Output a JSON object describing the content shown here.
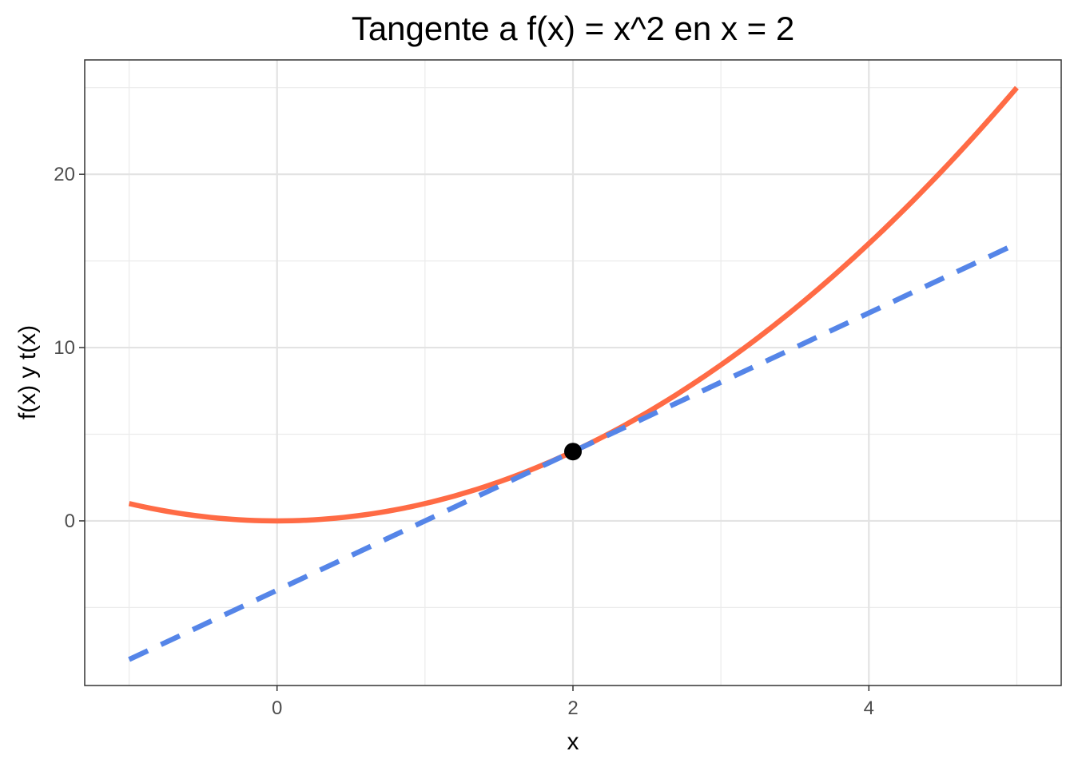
{
  "chart_data": {
    "type": "line",
    "title": "Tangente a f(x) = x^2 en x = 2",
    "xlabel": "x",
    "ylabel": "f(x) y t(x)",
    "xlim": [
      -1.3,
      5.3
    ],
    "ylim": [
      -9.5,
      26.6
    ],
    "x_ticks": [
      0,
      2,
      4
    ],
    "x_tick_labels": [
      "0",
      "2",
      "4"
    ],
    "y_ticks": [
      0,
      10,
      20
    ],
    "y_tick_labels": [
      "0",
      "10",
      "20"
    ],
    "x_minor": [
      -1,
      1,
      3,
      5
    ],
    "y_minor": [
      -5,
      5,
      15,
      25
    ],
    "grid": true,
    "legend": "none",
    "series": [
      {
        "style": "solid",
        "color": "#FF6B45",
        "x": [
          -1,
          -0.5,
          0,
          0.5,
          1,
          1.5,
          2,
          2.5,
          3,
          3.5,
          4,
          4.5,
          5
        ],
        "y": [
          1,
          0.25,
          0,
          0.25,
          1,
          2.25,
          4,
          6.25,
          9,
          12.25,
          16,
          20.25,
          25
        ]
      },
      {
        "style": "dashed",
        "color": "#5585E8",
        "x": [
          -1,
          5
        ],
        "y": [
          -8,
          16
        ]
      }
    ],
    "points": [
      {
        "x": 2,
        "y": 4,
        "color": "#000000"
      }
    ]
  }
}
